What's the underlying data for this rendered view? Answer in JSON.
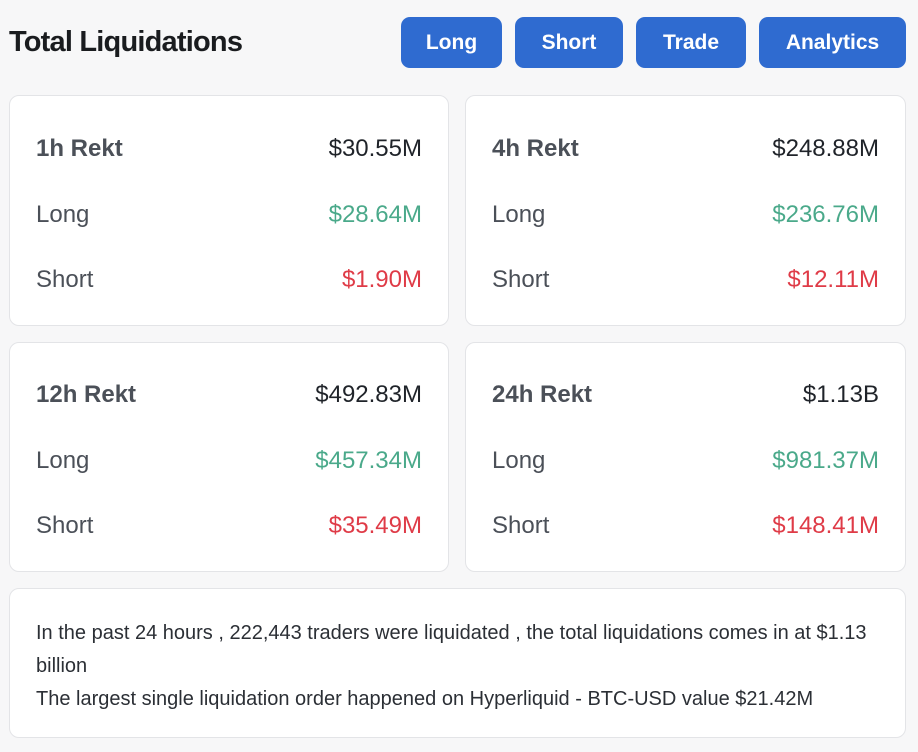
{
  "header": {
    "title": "Total Liquidations",
    "buttons": {
      "long": "Long",
      "short": "Short",
      "trade": "Trade",
      "analytics": "Analytics"
    }
  },
  "cards": {
    "h1": {
      "title": "1h Rekt",
      "total": "$30.55M",
      "long_label": "Long",
      "long_value": "$28.64M",
      "short_label": "Short",
      "short_value": "$1.90M"
    },
    "h4": {
      "title": "4h Rekt",
      "total": "$248.88M",
      "long_label": "Long",
      "long_value": "$236.76M",
      "short_label": "Short",
      "short_value": "$12.11M"
    },
    "h12": {
      "title": "12h Rekt",
      "total": "$492.83M",
      "long_label": "Long",
      "long_value": "$457.34M",
      "short_label": "Short",
      "short_value": "$35.49M"
    },
    "h24": {
      "title": "24h Rekt",
      "total": "$1.13B",
      "long_label": "Long",
      "long_value": "$981.37M",
      "short_label": "Short",
      "short_value": "$148.41M"
    }
  },
  "summary": {
    "line1": "In the past 24 hours , 222,443 traders were liquidated , the total liquidations comes in at $1.13 billion",
    "line2": "The largest single liquidation order happened on Hyperliquid - BTC-USD value $21.42M"
  },
  "colors": {
    "accent": "#2f6bd0",
    "long": "#4aa98a",
    "short": "#df3b47"
  }
}
